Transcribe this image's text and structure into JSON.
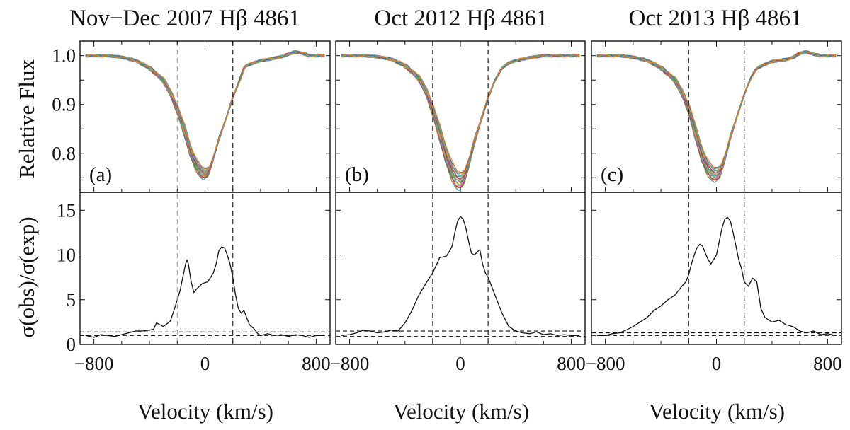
{
  "chart_data": {
    "type": "line",
    "x_axis": {
      "label": "Velocity (km/s)",
      "range": [
        -900,
        900
      ],
      "ticks": [
        -800,
        0,
        800
      ],
      "tick_labels": [
        "-800",
        "0",
        "800"
      ]
    },
    "top_axis": {
      "label": "Relative Flux",
      "range": [
        0.72,
        1.03
      ],
      "ticks": [
        0.8,
        0.9,
        1.0
      ],
      "tick_labels": [
        "0.8",
        "0.9",
        "1.0"
      ]
    },
    "bottom_axis": {
      "label": "σ(obs)/σ(exp)",
      "range": [
        0,
        17
      ],
      "ticks": [
        0,
        5,
        10,
        15
      ],
      "tick_labels": [
        "0",
        "5",
        "10",
        "15"
      ]
    },
    "reference_velocities": [
      -200,
      200
    ],
    "panels": [
      {
        "title": "Nov−Dec 2007 Hβ 4861",
        "label": "(a)",
        "profile": {
          "depth_min": 0.747,
          "depth_max": 0.768,
          "center": 0,
          "continuum": [
            1.0,
            1.0
          ],
          "x": [
            -860,
            -700,
            -600,
            -500,
            -400,
            -300,
            -250,
            -200,
            -150,
            -100,
            -60,
            -30,
            0,
            30,
            60,
            100,
            150,
            200,
            250,
            280,
            300,
            350,
            400,
            450,
            500,
            550,
            600,
            650,
            700,
            750,
            800,
            860
          ],
          "y": [
            1.0,
            1.0,
            0.997,
            0.99,
            0.975,
            0.95,
            0.925,
            0.89,
            0.85,
            0.8,
            0.775,
            0.763,
            0.758,
            0.765,
            0.79,
            0.83,
            0.87,
            0.915,
            0.95,
            0.975,
            0.98,
            0.985,
            0.99,
            0.992,
            0.995,
            0.998,
            1.003,
            1.008,
            1.005,
            1.0,
            1.0,
            1.0
          ]
        },
        "ratio": {
          "x": [
            -860,
            -800,
            -750,
            -700,
            -650,
            -600,
            -550,
            -500,
            -450,
            -400,
            -370,
            -350,
            -300,
            -250,
            -220,
            -200,
            -180,
            -160,
            -140,
            -130,
            -120,
            -100,
            -80,
            -60,
            -40,
            -20,
            0,
            20,
            40,
            60,
            80,
            100,
            120,
            140,
            160,
            180,
            200,
            220,
            240,
            260,
            280,
            300,
            320,
            350,
            380,
            400,
            450,
            500,
            550,
            600,
            650,
            700,
            750,
            800,
            860
          ],
          "y": [
            1.0,
            0.8,
            1.1,
            1.0,
            0.9,
            1.1,
            1.3,
            1.5,
            1.5,
            1.6,
            1.7,
            2.4,
            2.0,
            2.6,
            4.0,
            5.0,
            6.0,
            7.5,
            9.0,
            9.4,
            9.0,
            7.0,
            5.8,
            6.2,
            6.5,
            6.8,
            6.9,
            7.0,
            7.5,
            8.0,
            9.0,
            10.5,
            10.9,
            10.8,
            10.0,
            9.0,
            7.5,
            5.5,
            4.0,
            3.5,
            3.8,
            3.0,
            2.2,
            1.8,
            1.2,
            1.0,
            1.2,
            1.0,
            1.1,
            0.9,
            1.1,
            1.0,
            0.8,
            1.0,
            1.0
          ]
        },
        "threshold_lines": [
          1.0,
          1.4
        ]
      },
      {
        "title": "Oct 2012 Hβ 4861",
        "label": "(b)",
        "profile": {
          "depth_min": 0.725,
          "depth_max": 0.76,
          "center": 0,
          "continuum": [
            1.0,
            1.0
          ],
          "x": [
            -860,
            -700,
            -600,
            -500,
            -400,
            -300,
            -250,
            -200,
            -150,
            -100,
            -60,
            -30,
            0,
            30,
            60,
            100,
            150,
            200,
            250,
            280,
            300,
            350,
            400,
            450,
            500,
            550,
            600,
            650,
            700,
            750,
            800,
            860
          ],
          "y": [
            1.0,
            1.0,
            0.998,
            0.993,
            0.98,
            0.955,
            0.93,
            0.89,
            0.845,
            0.795,
            0.765,
            0.75,
            0.745,
            0.755,
            0.78,
            0.825,
            0.87,
            0.915,
            0.95,
            0.965,
            0.975,
            0.985,
            0.99,
            0.993,
            0.996,
            0.998,
            1.0,
            1.0,
            1.0,
            1.0,
            1.0,
            1.0
          ]
        },
        "ratio": {
          "x": [
            -860,
            -800,
            -750,
            -700,
            -650,
            -600,
            -550,
            -500,
            -450,
            -400,
            -350,
            -300,
            -250,
            -200,
            -170,
            -150,
            -120,
            -100,
            -80,
            -60,
            -40,
            -20,
            0,
            20,
            40,
            60,
            80,
            100,
            120,
            140,
            160,
            180,
            200,
            250,
            300,
            350,
            400,
            450,
            500,
            550,
            600,
            650,
            700,
            750,
            800,
            860
          ],
          "y": [
            1.0,
            1.1,
            1.3,
            1.6,
            1.5,
            1.3,
            1.4,
            1.6,
            1.5,
            2.4,
            3.8,
            5.5,
            6.8,
            8.0,
            9.0,
            9.7,
            9.8,
            9.9,
            10.4,
            11.0,
            12.5,
            13.8,
            14.3,
            14.0,
            13.0,
            11.5,
            10.2,
            10.0,
            10.3,
            10.6,
            9.0,
            8.0,
            7.5,
            5.5,
            3.5,
            2.0,
            1.5,
            1.3,
            1.2,
            1.4,
            1.1,
            1.2,
            1.0,
            1.1,
            1.0,
            1.0
          ]
        },
        "threshold_lines": [
          0.9,
          1.5
        ]
      },
      {
        "title": "Oct 2013 Hβ 4861",
        "label": "(c)",
        "profile": {
          "depth_min": 0.742,
          "depth_max": 0.77,
          "center": 0,
          "continuum": [
            1.0,
            1.0
          ],
          "x": [
            -860,
            -700,
            -600,
            -500,
            -400,
            -300,
            -250,
            -200,
            -150,
            -100,
            -60,
            -30,
            0,
            30,
            60,
            100,
            150,
            200,
            250,
            280,
            300,
            350,
            400,
            450,
            500,
            550,
            600,
            650,
            700,
            750,
            800,
            860
          ],
          "y": [
            1.0,
            1.0,
            0.997,
            0.99,
            0.975,
            0.95,
            0.925,
            0.89,
            0.84,
            0.79,
            0.765,
            0.755,
            0.752,
            0.76,
            0.785,
            0.83,
            0.875,
            0.92,
            0.955,
            0.97,
            0.975,
            0.982,
            0.988,
            0.99,
            0.992,
            0.996,
            1.005,
            1.008,
            1.003,
            1.0,
            1.0,
            1.0
          ]
        },
        "ratio": {
          "x": [
            -860,
            -800,
            -750,
            -700,
            -650,
            -600,
            -550,
            -500,
            -450,
            -400,
            -350,
            -300,
            -250,
            -220,
            -200,
            -180,
            -160,
            -140,
            -120,
            -100,
            -80,
            -60,
            -40,
            -20,
            0,
            20,
            40,
            60,
            80,
            100,
            120,
            140,
            160,
            180,
            200,
            230,
            260,
            290,
            320,
            350,
            400,
            450,
            500,
            550,
            600,
            650,
            700,
            750,
            800,
            860
          ],
          "y": [
            1.0,
            1.0,
            1.2,
            1.3,
            1.6,
            2.0,
            2.5,
            3.0,
            3.8,
            4.3,
            5.0,
            5.5,
            6.5,
            7.0,
            7.8,
            9.0,
            10.0,
            10.8,
            11.2,
            11.0,
            10.2,
            9.5,
            9.0,
            9.5,
            10.0,
            11.5,
            13.0,
            14.0,
            14.2,
            13.8,
            12.5,
            11.0,
            9.5,
            8.5,
            7.0,
            6.5,
            7.4,
            7.0,
            4.0,
            3.0,
            2.5,
            2.7,
            2.2,
            2.0,
            1.5,
            1.3,
            1.5,
            1.1,
            1.2,
            1.0
          ]
        },
        "threshold_lines": [
          1.0,
          1.3
        ]
      }
    ],
    "series_colors": [
      "#1f77b4",
      "#ff7f0e",
      "#2ca02c",
      "#d62728",
      "#9467bd",
      "#8c564b",
      "#e377c2",
      "#bcbd22",
      "#17becf",
      "#7f7f7f"
    ]
  }
}
